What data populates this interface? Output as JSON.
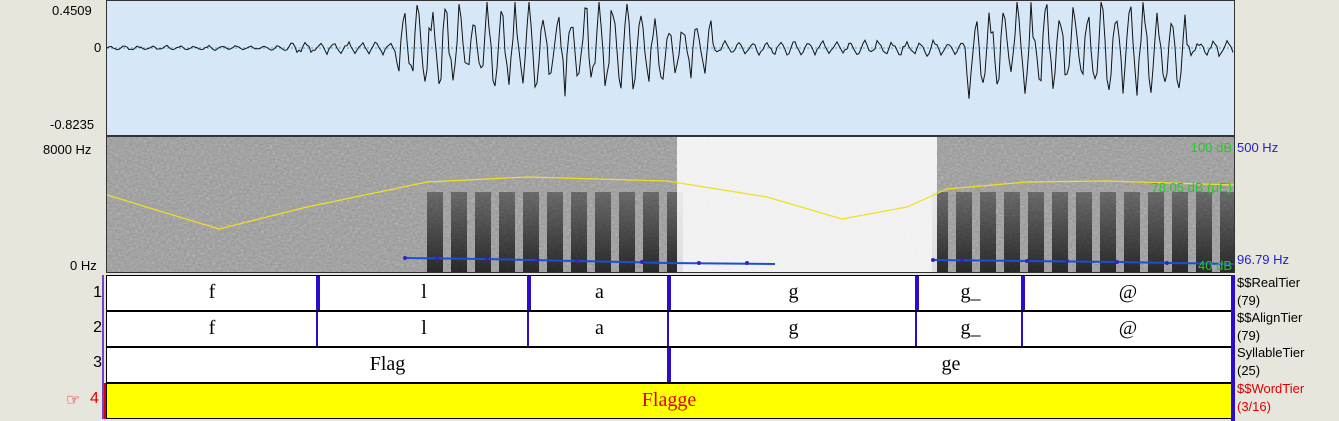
{
  "waveform": {
    "ymax": "0.4509",
    "yzero": "0",
    "ymin": "-0.8235"
  },
  "spectrogram": {
    "freq_max": "8000 Hz",
    "freq_min": "0 Hz",
    "db_max": "100 dB",
    "db_cursor": "78.05 dB (μE)",
    "db_min": "40 dB",
    "pitch_max": "500 Hz",
    "pitch_cursor": "96.79 Hz",
    "colors": {
      "intensity": "#f0e020",
      "pitch": "#1a4fd0",
      "db_text": "#22cc22",
      "pitch_text": "#2222cc"
    }
  },
  "tiers": [
    {
      "number": "1",
      "name": "$$RealTier",
      "count": "(79)",
      "cells": [
        "f",
        "l",
        "a",
        "g",
        "g_",
        "@"
      ]
    },
    {
      "number": "2",
      "name": "$$AlignTier",
      "count": "(79)",
      "cells": [
        "f",
        "l",
        "a",
        "g",
        "g_",
        "@"
      ]
    },
    {
      "number": "3",
      "name": "SyllableTier",
      "count": "(25)",
      "cells": [
        "Flag",
        "ge"
      ]
    },
    {
      "number": "4",
      "pointer": "☞",
      "name": "$$WordTier",
      "count": "(3/16)",
      "cells": [
        "Flagge"
      ],
      "selected": true
    }
  ],
  "accent": {
    "selected_tier_bg": "#ffff00",
    "selected_text": "#dd0000",
    "boundary": "#2a0ccc"
  }
}
